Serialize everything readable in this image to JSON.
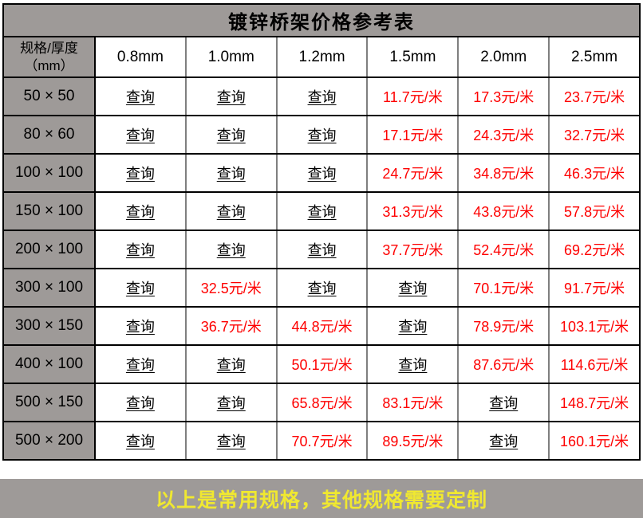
{
  "chart_data": {
    "type": "table",
    "title": "镀锌桥架价格参考表",
    "corner_header": "规格/厚度\n（mm）",
    "columns": [
      "0.8mm",
      "1.0mm",
      "1.2mm",
      "1.5mm",
      "2.0mm",
      "2.5mm"
    ],
    "query_label": "查询",
    "rows": [
      {
        "spec": "50 × 50",
        "cells": [
          "查询",
          "查询",
          "查询",
          "11.7元/米",
          "17.3元/米",
          "23.7元/米"
        ]
      },
      {
        "spec": "80 × 60",
        "cells": [
          "查询",
          "查询",
          "查询",
          "17.1元/米",
          "24.3元/米",
          "32.7元/米"
        ]
      },
      {
        "spec": "100 × 100",
        "cells": [
          "查询",
          "查询",
          "查询",
          "24.7元/米",
          "34.8元/米",
          "46.3元/米"
        ]
      },
      {
        "spec": "150 × 100",
        "cells": [
          "查询",
          "查询",
          "查询",
          "31.3元/米",
          "43.8元/米",
          "57.8元/米"
        ]
      },
      {
        "spec": "200 × 100",
        "cells": [
          "查询",
          "查询",
          "查询",
          "37.7元/米",
          "52.4元/米",
          "69.2元/米"
        ]
      },
      {
        "spec": "300 × 100",
        "cells": [
          "查询",
          "32.5元/米",
          "查询",
          "查询",
          "70.1元/米",
          "91.7元/米"
        ]
      },
      {
        "spec": "300 × 150",
        "cells": [
          "查询",
          "36.7元/米",
          "44.8元/米",
          "查询",
          "78.9元/米",
          "103.1元/米"
        ]
      },
      {
        "spec": "400 × 100",
        "cells": [
          "查询",
          "查询",
          "50.1元/米",
          "查询",
          "87.6元/米",
          "114.6元/米"
        ]
      },
      {
        "spec": "500 × 150",
        "cells": [
          "查询",
          "查询",
          "65.8元/米",
          "83.1元/米",
          "查询",
          "148.7元/米"
        ]
      },
      {
        "spec": "500 × 200",
        "cells": [
          "查询",
          "查询",
          "70.7元/米",
          "89.5元/米",
          "查询",
          "160.1元/米"
        ]
      }
    ],
    "footnote": "以上是常用规格，其他规格需要定制"
  },
  "colors": {
    "header_gray": "#9e9a98",
    "price_red": "#fe0000",
    "note_yellow": "#f0e830",
    "divider_gray": "#7f7f7f",
    "border_black": "#000000"
  }
}
